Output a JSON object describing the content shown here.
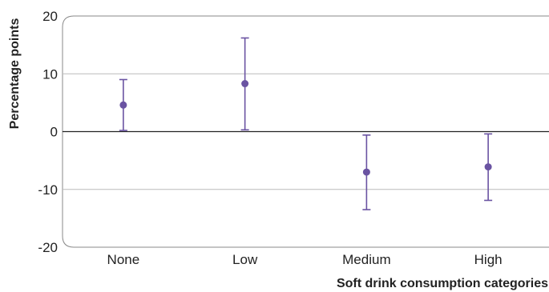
{
  "chart_data": {
    "type": "errorbar",
    "title": "",
    "xlabel": "Soft drink consumption categories",
    "ylabel": "Percentage points",
    "ylim": [
      -20,
      20
    ],
    "yticks": [
      -20,
      -10,
      0,
      10,
      20
    ],
    "ytick_labels": [
      "-20",
      "-10",
      "0",
      "10",
      "20"
    ],
    "grid": true,
    "categories": [
      "None",
      "Low",
      "Medium",
      "High"
    ],
    "series": [
      {
        "values": [
          4.6,
          8.3,
          -7.0,
          -6.1
        ],
        "lower": [
          0.2,
          0.3,
          -13.5,
          -11.9
        ],
        "upper": [
          9.0,
          16.2,
          -0.6,
          -0.4
        ]
      }
    ],
    "colors": {
      "marker": "#6a53a2",
      "error_bar": "#6a53a2",
      "grid": "#bbbbbb",
      "zero_line": "#222222",
      "frame": "#888888"
    }
  }
}
